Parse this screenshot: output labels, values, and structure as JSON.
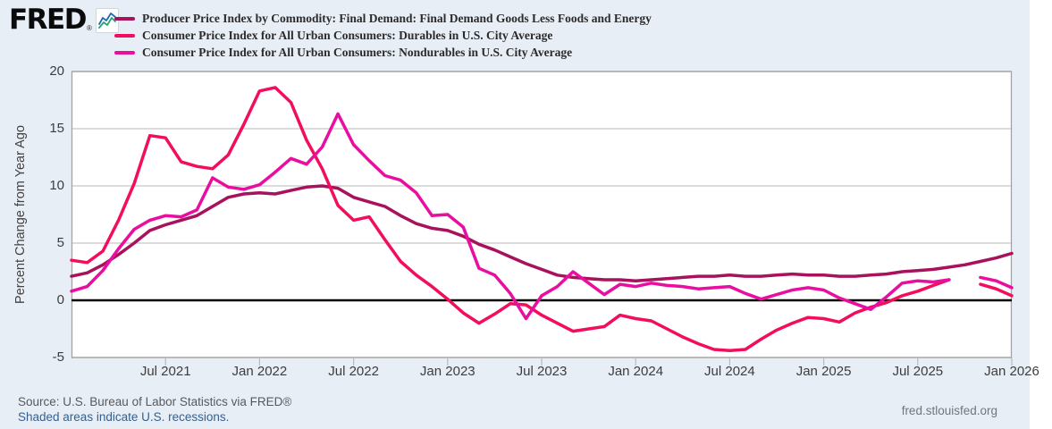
{
  "logo": {
    "text": "FRED",
    "registered_mark": "®",
    "icon": "sparkline-chart-icon"
  },
  "chart_data": {
    "type": "line",
    "title": "",
    "ylabel": "Percent Change from Year Ago",
    "xlabel": "",
    "ylim": [
      -5,
      20
    ],
    "y_ticks": [
      20,
      15,
      10,
      5,
      0,
      -5
    ],
    "y_tick_labels": [
      "20",
      "15",
      "10",
      "5",
      "0",
      "-5"
    ],
    "grid": "horizontal",
    "zero_line": true,
    "legend_position": "top-left",
    "x_start_month": "2021-01",
    "x_end_month": "2026-01",
    "frequency": "monthly",
    "x_ticks": [
      {
        "label": "Jul 2021",
        "month": 6
      },
      {
        "label": "Jan 2022",
        "month": 12
      },
      {
        "label": "Jul 2022",
        "month": 18
      },
      {
        "label": "Jan 2023",
        "month": 24
      },
      {
        "label": "Jul 2023",
        "month": 30
      },
      {
        "label": "Jan 2024",
        "month": 36
      },
      {
        "label": "Jul 2024",
        "month": 42
      },
      {
        "label": "Jan 2025",
        "month": 48
      },
      {
        "label": "Jul 2025",
        "month": 54
      },
      {
        "label": "Jan 2026",
        "month": 60
      }
    ],
    "series": [
      {
        "name": "Producer Price Index by Commodity: Final Demand: Final Demand Goods Less Foods and Energy",
        "color": "#a8125c",
        "values": [
          2.1,
          2.4,
          3.1,
          4.0,
          5.0,
          6.1,
          6.6,
          7.0,
          7.4,
          8.2,
          9.0,
          9.3,
          9.4,
          9.3,
          9.6,
          9.9,
          10.0,
          9.8,
          9.0,
          8.6,
          8.2,
          7.4,
          6.7,
          6.3,
          6.1,
          5.6,
          4.9,
          4.4,
          3.8,
          3.2,
          2.7,
          2.2,
          2.0,
          1.9,
          1.8,
          1.8,
          1.7,
          1.8,
          1.9,
          2.0,
          2.1,
          2.1,
          2.2,
          2.1,
          2.1,
          2.2,
          2.3,
          2.2,
          2.2,
          2.1,
          2.1,
          2.2,
          2.3,
          2.5,
          2.6,
          2.7,
          2.9,
          3.1,
          3.4,
          3.7,
          4.1
        ]
      },
      {
        "name": "Consumer Price Index for All Urban Consumers: Durables in U.S. City Average",
        "color": "#f20d5e",
        "gap_month": "2025-10",
        "values": [
          3.5,
          3.3,
          4.3,
          7.0,
          10.2,
          14.4,
          14.2,
          12.1,
          11.7,
          11.5,
          12.7,
          15.4,
          18.3,
          18.6,
          17.3,
          14.0,
          11.5,
          8.3,
          7.0,
          7.3,
          5.3,
          3.4,
          2.2,
          1.2,
          0.1,
          -1.1,
          -2.0,
          -1.2,
          -0.3,
          -0.4,
          -1.3,
          -2.0,
          -2.7,
          -2.5,
          -2.3,
          -1.3,
          -1.6,
          -1.8,
          -2.5,
          -3.2,
          -3.8,
          -4.3,
          -4.4,
          -4.3,
          -3.4,
          -2.6,
          -2.0,
          -1.5,
          -1.6,
          -1.9,
          -1.1,
          -0.6,
          -0.2,
          0.4,
          0.8,
          1.3,
          1.8,
          null,
          1.4,
          1.0,
          0.4
        ]
      },
      {
        "name": "Consumer Price Index for All Urban Consumers: Nondurables in U.S. City Average",
        "color": "#e90da0",
        "gap_month": "2025-10",
        "values": [
          0.8,
          1.2,
          2.6,
          4.5,
          6.2,
          7.0,
          7.4,
          7.3,
          7.9,
          10.7,
          9.9,
          9.7,
          10.1,
          11.2,
          12.4,
          11.9,
          13.4,
          16.3,
          13.6,
          12.2,
          10.9,
          10.5,
          9.4,
          7.4,
          7.5,
          6.4,
          2.8,
          2.2,
          0.6,
          -1.6,
          0.4,
          1.2,
          2.5,
          1.5,
          0.5,
          1.4,
          1.2,
          1.5,
          1.3,
          1.2,
          1.0,
          1.1,
          1.2,
          0.6,
          0.1,
          0.5,
          0.9,
          1.1,
          0.9,
          0.2,
          -0.3,
          -0.8,
          0.3,
          1.5,
          1.7,
          1.6,
          1.8,
          null,
          2.0,
          1.7,
          1.1
        ]
      }
    ]
  },
  "footer": {
    "source": "Source: U.S. Bureau of Labor Statistics via FRED®",
    "recessions_note": "Shaded areas indicate U.S. recessions.",
    "site": "fred.stlouisfed.org"
  },
  "colors": {
    "background": "#e7eef6",
    "plot_background": "#ffffff",
    "gridline": "#c7c7c7",
    "axis_border": "#a3a3a3",
    "zero_line": "#000000",
    "tick_mark": "#aebdcb"
  }
}
